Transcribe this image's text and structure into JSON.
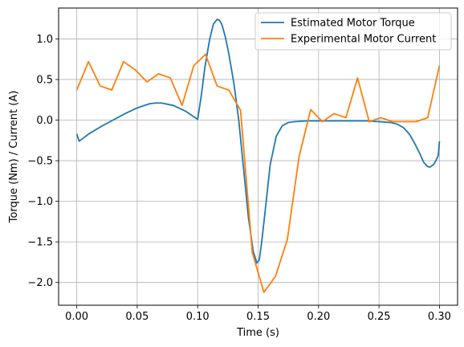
{
  "chart_data": {
    "type": "line",
    "title": "",
    "xlabel": "Time (s)",
    "ylabel": "Torque (Nm) / Current (A)",
    "xlim": [
      -0.015,
      0.315
    ],
    "ylim": [
      -2.28,
      1.38
    ],
    "xticks": [
      0.0,
      0.05,
      0.1,
      0.15,
      0.2,
      0.25,
      0.3
    ],
    "xtick_labels": [
      "0.00",
      "0.05",
      "0.10",
      "0.15",
      "0.20",
      "0.25",
      "0.30"
    ],
    "yticks": [
      -2.0,
      -1.5,
      -1.0,
      -0.5,
      0.0,
      0.5,
      1.0
    ],
    "ytick_labels": [
      "−2.0",
      "−1.5",
      "−1.0",
      "−0.5",
      "0.0",
      "0.5",
      "1.0"
    ],
    "grid": true,
    "legend_position": "top-right",
    "series": [
      {
        "name": "Estimated Motor Torque",
        "color": "#1f77b4",
        "x": [
          0.0,
          0.002,
          0.01,
          0.02,
          0.03,
          0.04,
          0.05,
          0.06,
          0.065,
          0.07,
          0.08,
          0.09,
          0.096,
          0.1,
          0.103,
          0.106,
          0.11,
          0.113,
          0.116,
          0.118,
          0.12,
          0.123,
          0.126,
          0.13,
          0.134,
          0.138,
          0.142,
          0.146,
          0.149,
          0.151,
          0.153,
          0.156,
          0.16,
          0.165,
          0.17,
          0.175,
          0.18,
          0.19,
          0.2,
          0.21,
          0.22,
          0.23,
          0.24,
          0.25,
          0.26,
          0.265,
          0.27,
          0.275,
          0.28,
          0.284,
          0.287,
          0.29,
          0.292,
          0.295,
          0.297,
          0.299,
          0.3
        ],
        "y": [
          -0.17,
          -0.26,
          -0.17,
          -0.08,
          0.0,
          0.08,
          0.15,
          0.2,
          0.21,
          0.21,
          0.18,
          0.11,
          0.05,
          0.01,
          0.3,
          0.65,
          1.0,
          1.18,
          1.24,
          1.23,
          1.18,
          1.02,
          0.8,
          0.45,
          0.0,
          -0.6,
          -1.2,
          -1.62,
          -1.76,
          -1.72,
          -1.5,
          -1.1,
          -0.55,
          -0.2,
          -0.07,
          -0.03,
          -0.02,
          -0.01,
          -0.01,
          -0.01,
          -0.01,
          -0.01,
          -0.01,
          -0.02,
          -0.03,
          -0.05,
          -0.09,
          -0.17,
          -0.3,
          -0.42,
          -0.52,
          -0.57,
          -0.58,
          -0.55,
          -0.5,
          -0.44,
          -0.26
        ]
      },
      {
        "name": "Experimental Motor Current",
        "color": "#ff7f0e",
        "x": [
          0.0,
          0.0097,
          0.0194,
          0.029,
          0.0387,
          0.0484,
          0.0581,
          0.0677,
          0.0774,
          0.0871,
          0.0968,
          0.1065,
          0.1161,
          0.1258,
          0.1355,
          0.1452,
          0.1548,
          0.1645,
          0.1742,
          0.1839,
          0.1935,
          0.2032,
          0.2129,
          0.2226,
          0.2323,
          0.2419,
          0.2516,
          0.2613,
          0.271,
          0.2806,
          0.2903,
          0.3
        ],
        "y": [
          0.37,
          0.72,
          0.42,
          0.37,
          0.72,
          0.62,
          0.47,
          0.57,
          0.52,
          0.18,
          0.67,
          0.81,
          0.42,
          0.37,
          0.12,
          -1.63,
          -2.12,
          -1.92,
          -1.47,
          -0.45,
          0.13,
          -0.02,
          0.08,
          0.03,
          0.52,
          -0.02,
          0.03,
          -0.02,
          -0.02,
          -0.02,
          0.03,
          0.67
        ]
      }
    ]
  }
}
